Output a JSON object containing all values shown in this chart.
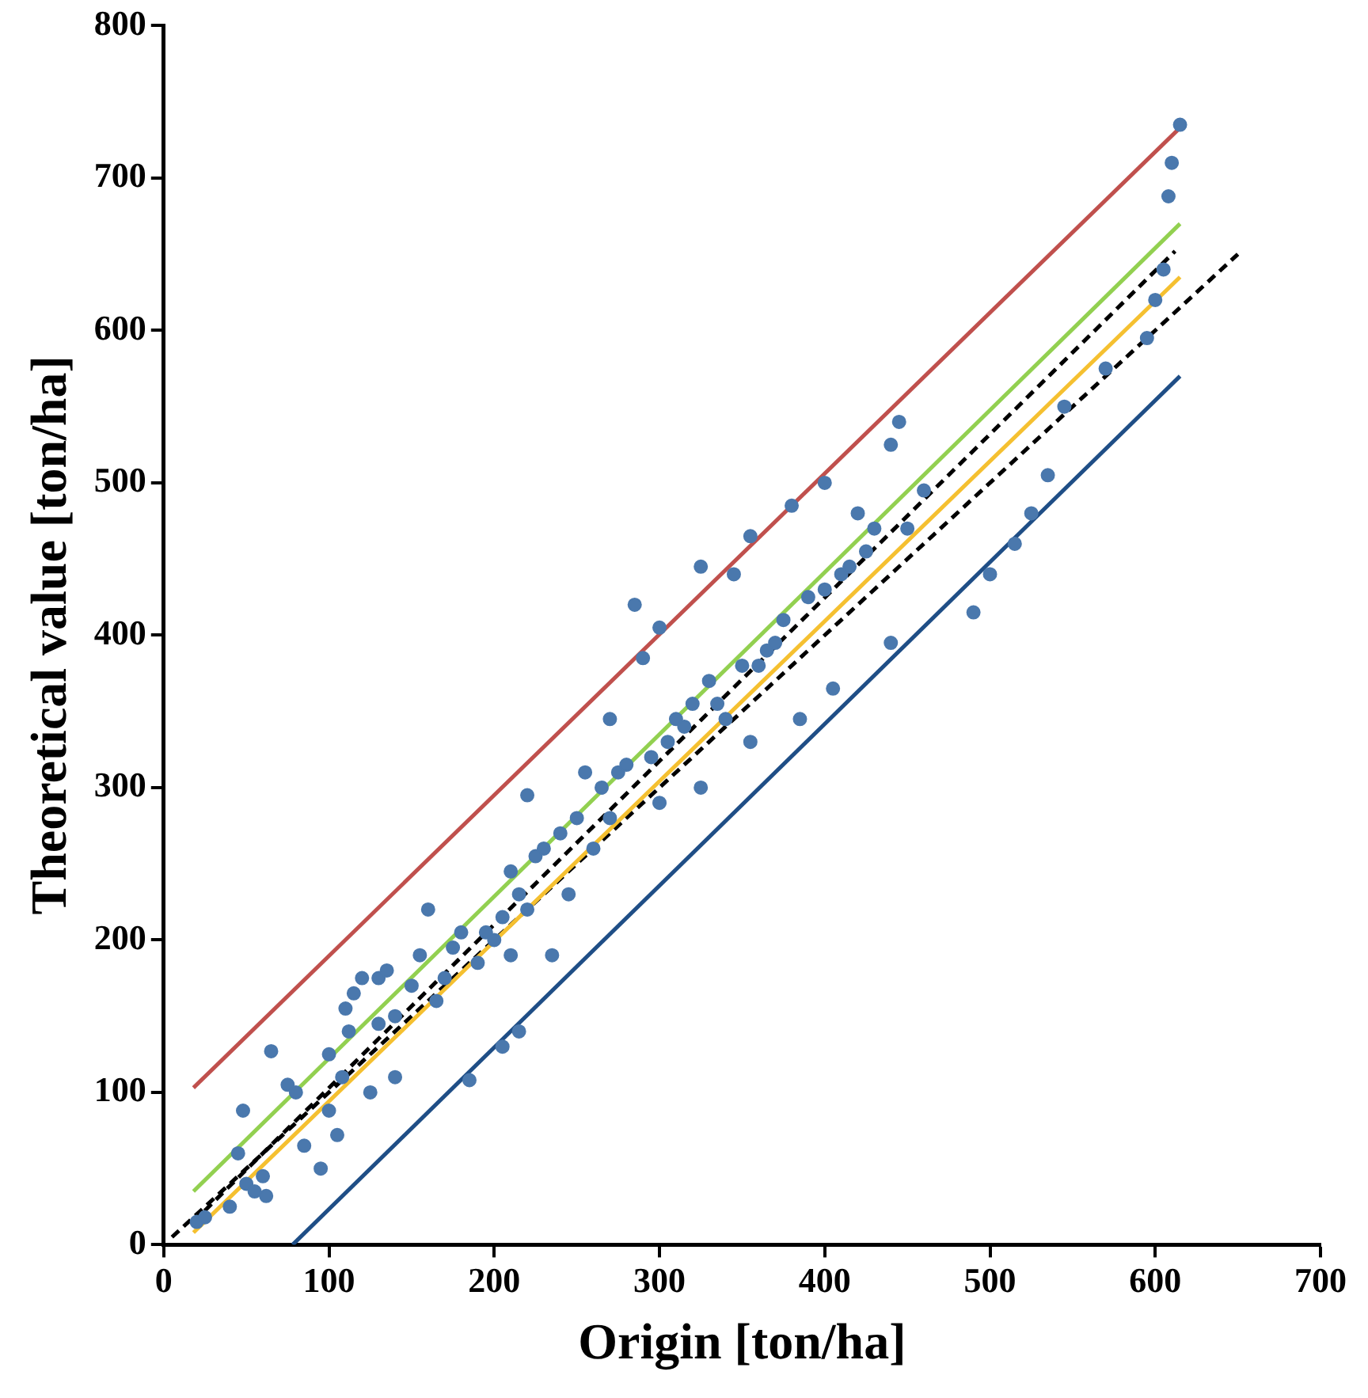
{
  "chart_data": {
    "type": "scatter",
    "xlabel": "Origin [ton/ha]",
    "ylabel": "Theoretical value [ton/ha]",
    "xlim": [
      0,
      700
    ],
    "xticks": [
      0,
      100,
      200,
      300,
      400,
      500,
      600,
      700
    ],
    "ylim": [
      0,
      800
    ],
    "yticks": [
      0,
      100,
      200,
      300,
      400,
      500,
      600,
      700,
      800
    ],
    "grid": false,
    "legend": false,
    "series": [
      {
        "color": "#4a78ad",
        "marker": "circle",
        "x": [
          20,
          25,
          40,
          45,
          48,
          50,
          55,
          60,
          62,
          65,
          75,
          80,
          85,
          95,
          100,
          100,
          105,
          108,
          110,
          112,
          115,
          120,
          125,
          130,
          130,
          135,
          140,
          140,
          150,
          155,
          160,
          165,
          170,
          175,
          180,
          185,
          190,
          195,
          200,
          205,
          205,
          210,
          210,
          215,
          215,
          220,
          220,
          225,
          230,
          235,
          240,
          245,
          250,
          255,
          260,
          265,
          270,
          270,
          275,
          280,
          285,
          290,
          295,
          300,
          300,
          305,
          310,
          315,
          320,
          325,
          325,
          330,
          335,
          340,
          345,
          350,
          355,
          355,
          360,
          365,
          370,
          375,
          380,
          385,
          390,
          400,
          400,
          405,
          410,
          415,
          420,
          425,
          430,
          440,
          440,
          445,
          450,
          460,
          490,
          500,
          515,
          525,
          535,
          545,
          570,
          595,
          600,
          605,
          608,
          610,
          615
        ],
        "values": [
          15,
          18,
          25,
          60,
          88,
          40,
          35,
          45,
          32,
          127,
          105,
          100,
          65,
          50,
          88,
          125,
          72,
          110,
          155,
          140,
          165,
          175,
          100,
          145,
          175,
          180,
          110,
          150,
          170,
          190,
          220,
          160,
          175,
          195,
          205,
          108,
          185,
          205,
          200,
          130,
          215,
          190,
          245,
          140,
          230,
          220,
          295,
          255,
          260,
          190,
          270,
          230,
          280,
          310,
          260,
          300,
          280,
          345,
          310,
          315,
          420,
          385,
          320,
          290,
          405,
          330,
          345,
          340,
          355,
          300,
          445,
          370,
          355,
          345,
          440,
          380,
          330,
          465,
          380,
          390,
          395,
          410,
          485,
          345,
          425,
          500,
          430,
          365,
          440,
          445,
          480,
          455,
          470,
          525,
          395,
          540,
          470,
          495,
          415,
          440,
          460,
          480,
          505,
          550,
          575,
          595,
          620,
          640,
          688,
          710,
          735
        ]
      },
      {
        "type": "line",
        "color": "#c0504d",
        "marker": "none",
        "line_style": "solid",
        "x": [
          18,
          615
        ],
        "values": [
          103,
          733
        ]
      },
      {
        "type": "line",
        "color": "#92d050",
        "marker": "none",
        "line_style": "solid",
        "x": [
          18,
          615
        ],
        "values": [
          35,
          670
        ]
      },
      {
        "type": "line",
        "color": "#000000",
        "marker": "none",
        "line_style": "dashed",
        "x": [
          18,
          612
        ],
        "values": [
          15,
          652
        ]
      },
      {
        "type": "line",
        "color": "#f5c030",
        "marker": "none",
        "line_style": "solid",
        "x": [
          18,
          615
        ],
        "values": [
          8,
          635
        ]
      },
      {
        "type": "line",
        "color": "#000000",
        "marker": "none",
        "line_style": "dashed",
        "x": [
          5,
          650
        ],
        "values": [
          5,
          650
        ]
      },
      {
        "type": "line",
        "color": "#1f4e86",
        "marker": "none",
        "line_style": "solid",
        "x": [
          78,
          615
        ],
        "values": [
          0,
          570
        ]
      }
    ]
  }
}
